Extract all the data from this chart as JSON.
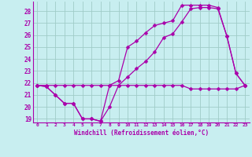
{
  "xlabel": "Windchill (Refroidissement éolien,°C)",
  "xlim": [
    -0.5,
    23.5
  ],
  "ylim": [
    18.7,
    28.8
  ],
  "yticks": [
    19,
    20,
    21,
    22,
    23,
    24,
    25,
    26,
    27,
    28
  ],
  "xticks": [
    0,
    1,
    2,
    3,
    4,
    5,
    6,
    7,
    8,
    9,
    10,
    11,
    12,
    13,
    14,
    15,
    16,
    17,
    18,
    19,
    20,
    21,
    22,
    23
  ],
  "background_color": "#c8eef0",
  "grid_color": "#a0ccc8",
  "line_color": "#aa00aa",
  "series": [
    [
      21.8,
      21.7,
      21.0,
      20.3,
      20.3,
      19.0,
      19.0,
      18.8,
      20.0,
      21.8,
      22.5,
      23.2,
      23.8,
      24.6,
      25.8,
      26.1,
      27.1,
      28.2,
      28.3,
      28.3,
      28.2,
      25.9,
      22.8,
      21.8
    ],
    [
      21.8,
      21.7,
      21.0,
      20.3,
      20.3,
      19.0,
      19.0,
      18.8,
      21.8,
      22.2,
      25.0,
      25.5,
      26.2,
      26.8,
      27.0,
      27.2,
      28.5,
      28.5,
      28.5,
      28.5,
      28.3,
      25.9,
      22.8,
      21.8
    ],
    [
      21.8,
      21.8,
      21.8,
      21.8,
      21.8,
      21.8,
      21.8,
      21.8,
      21.8,
      21.8,
      21.8,
      21.8,
      21.8,
      21.8,
      21.8,
      21.8,
      21.8,
      21.5,
      21.5,
      21.5,
      21.5,
      21.5,
      21.5,
      21.8
    ]
  ],
  "marker": "D",
  "markersize": 2.5,
  "linewidth": 0.9
}
